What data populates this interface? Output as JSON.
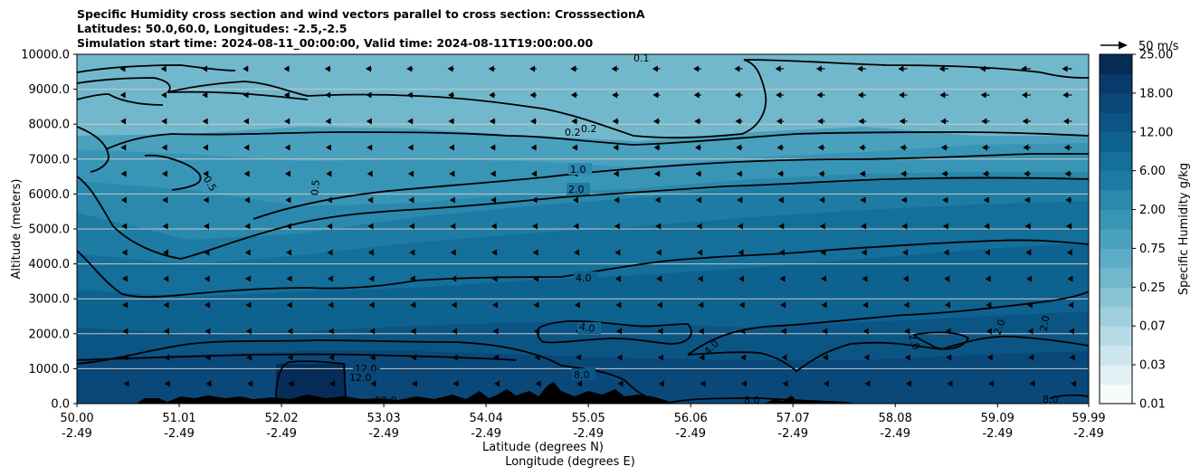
{
  "chart_data": {
    "type": "heatmap",
    "title_lines": [
      "Specific Humidity cross section and wind vectors parallel to cross section: CrosssectionA",
      "Latitudes: 50.0,60.0, Longitudes: -2.5,-2.5",
      "Simulation start time: 2024-08-11_00:00:00, Valid time: 2024-08-11T19:00:00.00"
    ],
    "ylabel": "Altitude (meters)",
    "xlabel_lines": [
      "Latitude (degrees N)",
      "Longitude (degrees E)"
    ],
    "ylim": [
      0,
      10000
    ],
    "xlim": [
      50.0,
      59.99
    ],
    "y_ticks": [
      "0.0",
      "1000.0",
      "2000.0",
      "3000.0",
      "4000.0",
      "5000.0",
      "6000.0",
      "7000.0",
      "8000.0",
      "9000.0",
      "10000.0"
    ],
    "y_tick_values": [
      0,
      1000,
      2000,
      3000,
      4000,
      5000,
      6000,
      7000,
      8000,
      9000,
      10000
    ],
    "x_ticks": [
      {
        "lat": "50.00",
        "lon": "-2.49",
        "value": 50.0
      },
      {
        "lat": "51.01",
        "lon": "-2.49",
        "value": 51.01
      },
      {
        "lat": "52.02",
        "lon": "-2.49",
        "value": 52.02
      },
      {
        "lat": "53.03",
        "lon": "-2.49",
        "value": 53.03
      },
      {
        "lat": "54.04",
        "lon": "-2.49",
        "value": 54.04
      },
      {
        "lat": "55.05",
        "lon": "-2.49",
        "value": 55.05
      },
      {
        "lat": "56.06",
        "lon": "-2.49",
        "value": 56.06
      },
      {
        "lat": "57.07",
        "lon": "-2.49",
        "value": 57.07
      },
      {
        "lat": "58.08",
        "lon": "-2.49",
        "value": 58.08
      },
      {
        "lat": "59.09",
        "lon": "-2.49",
        "value": 59.09
      },
      {
        "lat": "59.99",
        "lon": "-2.49",
        "value": 59.99
      }
    ],
    "colorbar": {
      "label": "Specific Humidity g/kg",
      "tick_labels": [
        "0.01",
        "0.03",
        "0.07",
        "0.25",
        "0.75",
        "2.00",
        "6.00",
        "12.00",
        "18.00",
        "25.00"
      ],
      "levels": 18,
      "colors": [
        "#f6fbfc",
        "#e2f0f3",
        "#cde5ec",
        "#b7dbe5",
        "#a0cfdd",
        "#89c4d5",
        "#72b8cd",
        "#5dadc6",
        "#4aa1be",
        "#3995b6",
        "#2a89ad",
        "#1e7ca4",
        "#146f9a",
        "#0e6290",
        "#0b5585",
        "#0a4879",
        "#083b6b",
        "#062c57"
      ]
    },
    "wind_vector_key": "50 m/s",
    "contours": [
      {
        "level": "12.0",
        "labels": [
          "12.0",
          "12.0",
          "12.0"
        ]
      },
      {
        "level": "8.0",
        "labels": [
          "8.0",
          "8.0",
          "8.0"
        ]
      },
      {
        "level": "4.0",
        "labels": [
          "4.0",
          "4.0",
          "4.0"
        ]
      },
      {
        "level": "2.0",
        "labels": [
          "2.0",
          "2.0",
          "2.0",
          "2.0"
        ]
      },
      {
        "level": "1.0",
        "labels": [
          "1.0"
        ]
      },
      {
        "level": "0.5",
        "labels": [
          "0.5",
          "0.5"
        ]
      },
      {
        "level": "0.2",
        "labels": [
          "0.2",
          "0.2"
        ]
      },
      {
        "level": "0.1",
        "labels": [
          "0.1"
        ]
      }
    ],
    "grid": "horizontal"
  }
}
